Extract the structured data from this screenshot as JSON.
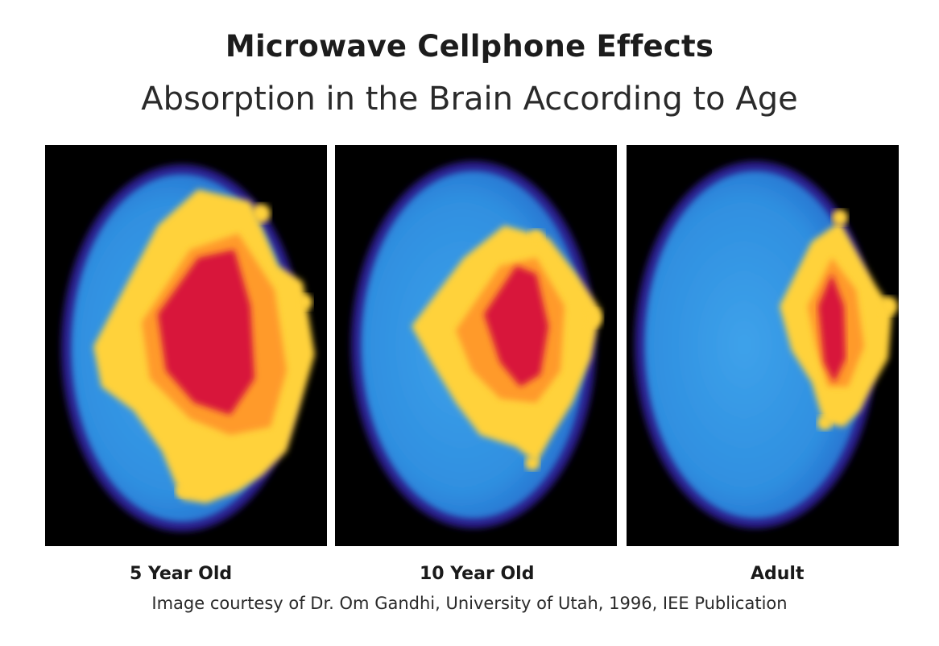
{
  "header": {
    "title": "Microwave Cellphone Effects",
    "subtitle": "Absorption in the Brain According to Age"
  },
  "panels": [
    {
      "label": "5 Year Old",
      "icon": "brain-absorption-scan-image"
    },
    {
      "label": "10 Year Old",
      "icon": "brain-absorption-scan-image"
    },
    {
      "label": "Adult",
      "icon": "brain-absorption-scan-image"
    }
  ],
  "colors": {
    "background": "#000000",
    "outer_ring": "#2a1a8a",
    "low": "#2f8fe0",
    "mid": "#ffd23a",
    "high": "#ff9a2a",
    "peak": "#d8163a"
  },
  "footer": {
    "credit": "Image courtesy of Dr. Om Gandhi, University of Utah, 1996, IEE Publication"
  }
}
